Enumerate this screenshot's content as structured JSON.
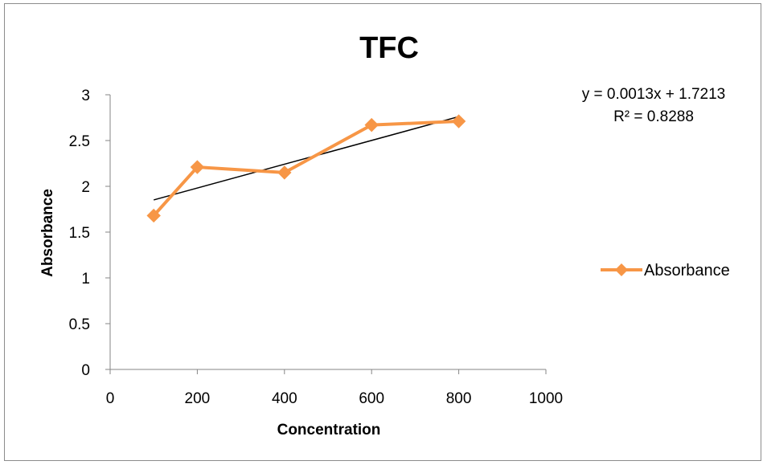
{
  "chart_data": {
    "type": "line",
    "title": "TFC",
    "xlabel": "Concentration",
    "ylabel": "Absorbance",
    "xlim": [
      0,
      1000
    ],
    "ylim": [
      0,
      3
    ],
    "x_ticks": [
      "0",
      "200",
      "400",
      "600",
      "800",
      "1000"
    ],
    "y_ticks": [
      "0",
      "0.5",
      "1",
      "1.5",
      "2",
      "2.5",
      "3"
    ],
    "series": [
      {
        "name": "Absorbance",
        "color": "#f79646",
        "marker": "diamond",
        "x": [
          100,
          200,
          400,
          600,
          800
        ],
        "y": [
          1.68,
          2.21,
          2.15,
          2.67,
          2.71
        ]
      }
    ],
    "trendline": {
      "type": "linear",
      "color": "#000000",
      "slope": 0.0013,
      "intercept": 1.7213,
      "x_range": [
        100,
        800
      ],
      "equation": "y = 0.0013x + 1.7213",
      "r_squared": "R² = 0.8288"
    },
    "legend": {
      "position": "right",
      "entries": [
        "Absorbance"
      ]
    },
    "grid": false
  }
}
